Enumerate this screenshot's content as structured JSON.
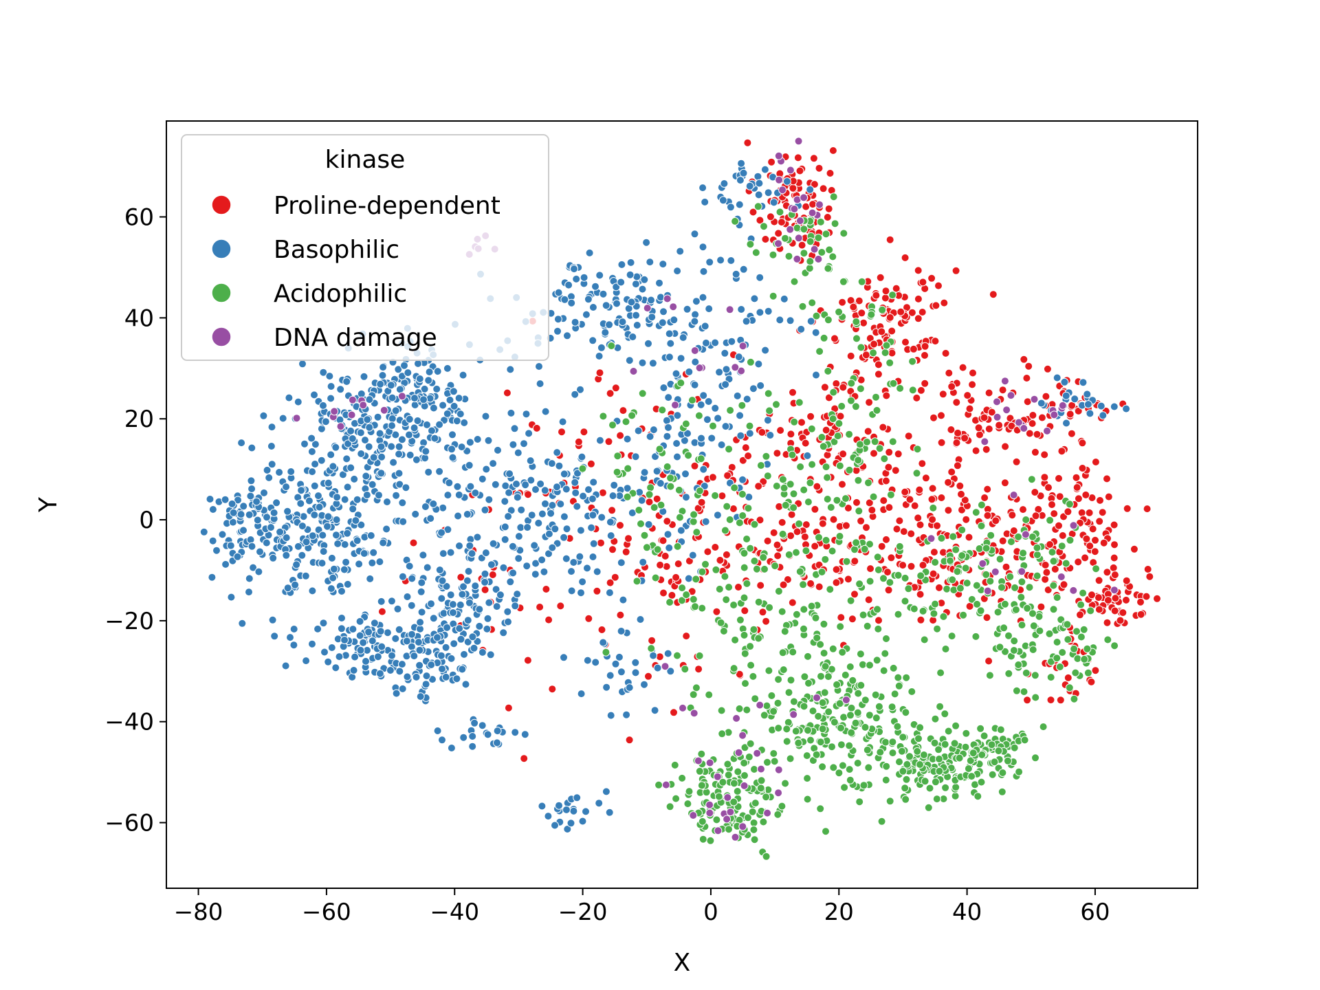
{
  "chart_data": {
    "type": "scatter",
    "title": "",
    "xlabel": "X",
    "ylabel": "Y",
    "xlim": [
      -85,
      76
    ],
    "ylim": [
      -73,
      79
    ],
    "xticks": [
      -80,
      -60,
      -40,
      -20,
      0,
      20,
      40,
      60
    ],
    "yticks": [
      -60,
      -40,
      -20,
      0,
      20,
      40,
      60
    ],
    "xtick_labels": [
      "−80",
      "−60",
      "−40",
      "−20",
      "0",
      "20",
      "40",
      "60"
    ],
    "ytick_labels": [
      "−60",
      "−40",
      "−20",
      "0",
      "20",
      "40",
      "60"
    ],
    "grid": false,
    "legend": {
      "title": "kinase",
      "placement": "upper-left",
      "entries": [
        "Proline-dependent",
        "Basophilic",
        "Acidophilic",
        "DNA damage"
      ]
    },
    "colors": {
      "Proline-dependent": "#e41a1c",
      "Basophilic": "#377eb8",
      "Acidophilic": "#4daf4a",
      "DNA damage": "#984ea3"
    },
    "series": [
      {
        "name": "Proline-dependent",
        "clusters": [
          {
            "x": 13,
            "y": 63,
            "sx": 3,
            "sy": 6,
            "n": 90
          },
          {
            "x": 28,
            "y": 40,
            "sx": 5,
            "sy": 6,
            "n": 110
          },
          {
            "x": 20,
            "y": 17,
            "sx": 5,
            "sy": 7,
            "n": 70
          },
          {
            "x": 42,
            "y": 20,
            "sx": 6,
            "sy": 6,
            "n": 70
          },
          {
            "x": 55,
            "y": 22,
            "sx": 5,
            "sy": 3,
            "n": 40
          },
          {
            "x": 58,
            "y": 2,
            "sx": 4,
            "sy": 6,
            "n": 60
          },
          {
            "x": 63,
            "y": -15,
            "sx": 4,
            "sy": 3,
            "n": 60
          },
          {
            "x": 45,
            "y": -5,
            "sx": 8,
            "sy": 7,
            "n": 120
          },
          {
            "x": 30,
            "y": -5,
            "sx": 6,
            "sy": 8,
            "n": 90
          },
          {
            "x": 12,
            "y": 0,
            "sx": 7,
            "sy": 10,
            "n": 90
          },
          {
            "x": -5,
            "y": -10,
            "sx": 8,
            "sy": 12,
            "n": 80
          },
          {
            "x": -15,
            "y": 10,
            "sx": 10,
            "sy": 12,
            "n": 50
          },
          {
            "x": 55,
            "y": -30,
            "sx": 3,
            "sy": 5,
            "n": 25
          },
          {
            "x": -33,
            "y": -15,
            "sx": 10,
            "sy": 12,
            "n": 30
          }
        ]
      },
      {
        "name": "Basophilic",
        "clusters": [
          {
            "x": -72,
            "y": -2,
            "sx": 4,
            "sy": 5,
            "n": 80
          },
          {
            "x": -60,
            "y": 0,
            "sx": 6,
            "sy": 9,
            "n": 220
          },
          {
            "x": -52,
            "y": 18,
            "sx": 7,
            "sy": 6,
            "n": 150
          },
          {
            "x": -45,
            "y": 25,
            "sx": 6,
            "sy": 5,
            "n": 100
          },
          {
            "x": -55,
            "y": -25,
            "sx": 5,
            "sy": 3,
            "n": 70
          },
          {
            "x": -45,
            "y": -28,
            "sx": 4,
            "sy": 4,
            "n": 80
          },
          {
            "x": -40,
            "y": -18,
            "sx": 4,
            "sy": 6,
            "n": 90
          },
          {
            "x": -30,
            "y": 0,
            "sx": 10,
            "sy": 10,
            "n": 200
          },
          {
            "x": -17,
            "y": 42,
            "sx": 7,
            "sy": 5,
            "n": 110
          },
          {
            "x": 0,
            "y": 35,
            "sx": 7,
            "sy": 10,
            "n": 100
          },
          {
            "x": -5,
            "y": 10,
            "sx": 8,
            "sy": 10,
            "n": 80
          },
          {
            "x": 8,
            "y": 65,
            "sx": 4,
            "sy": 3,
            "n": 35
          },
          {
            "x": 58,
            "y": 23,
            "sx": 3,
            "sy": 2,
            "n": 25
          },
          {
            "x": -35,
            "y": -42,
            "sx": 3,
            "sy": 1.5,
            "n": 20
          },
          {
            "x": -22,
            "y": -58,
            "sx": 3,
            "sy": 1.5,
            "n": 20
          },
          {
            "x": -15,
            "y": -30,
            "sx": 4,
            "sy": 5,
            "n": 30
          }
        ]
      },
      {
        "name": "Acidophilic",
        "clusters": [
          {
            "x": 20,
            "y": -38,
            "sx": 7,
            "sy": 8,
            "n": 220
          },
          {
            "x": 35,
            "y": -48,
            "sx": 5,
            "sy": 4,
            "n": 150
          },
          {
            "x": 45,
            "y": -45,
            "sx": 3,
            "sy": 2,
            "n": 40
          },
          {
            "x": 3,
            "y": -55,
            "sx": 4,
            "sy": 5,
            "n": 130
          },
          {
            "x": 40,
            "y": -10,
            "sx": 8,
            "sy": 6,
            "n": 120
          },
          {
            "x": 52,
            "y": -25,
            "sx": 5,
            "sy": 5,
            "n": 80
          },
          {
            "x": 18,
            "y": 15,
            "sx": 6,
            "sy": 8,
            "n": 70
          },
          {
            "x": 10,
            "y": -15,
            "sx": 9,
            "sy": 12,
            "n": 140
          },
          {
            "x": -5,
            "y": 10,
            "sx": 8,
            "sy": 10,
            "n": 60
          },
          {
            "x": 15,
            "y": 55,
            "sx": 4,
            "sy": 5,
            "n": 40
          },
          {
            "x": 25,
            "y": 38,
            "sx": 5,
            "sy": 5,
            "n": 30
          }
        ]
      },
      {
        "name": "DNA damage",
        "clusters": [
          {
            "x": 13,
            "y": 62,
            "sx": 3,
            "sy": 5,
            "n": 20
          },
          {
            "x": 3,
            "y": -58,
            "sx": 4,
            "sy": 4,
            "n": 15
          },
          {
            "x": 52,
            "y": 23,
            "sx": 4,
            "sy": 3,
            "n": 14
          },
          {
            "x": -57,
            "y": 22,
            "sx": 4,
            "sy": 2,
            "n": 10
          },
          {
            "x": -36,
            "y": 54,
            "sx": 1,
            "sy": 1,
            "n": 6
          },
          {
            "x": 5,
            "y": -40,
            "sx": 8,
            "sy": 6,
            "n": 15
          },
          {
            "x": -5,
            "y": 35,
            "sx": 6,
            "sy": 8,
            "n": 12
          },
          {
            "x": 45,
            "y": -5,
            "sx": 8,
            "sy": 8,
            "n": 12
          }
        ]
      }
    ]
  }
}
